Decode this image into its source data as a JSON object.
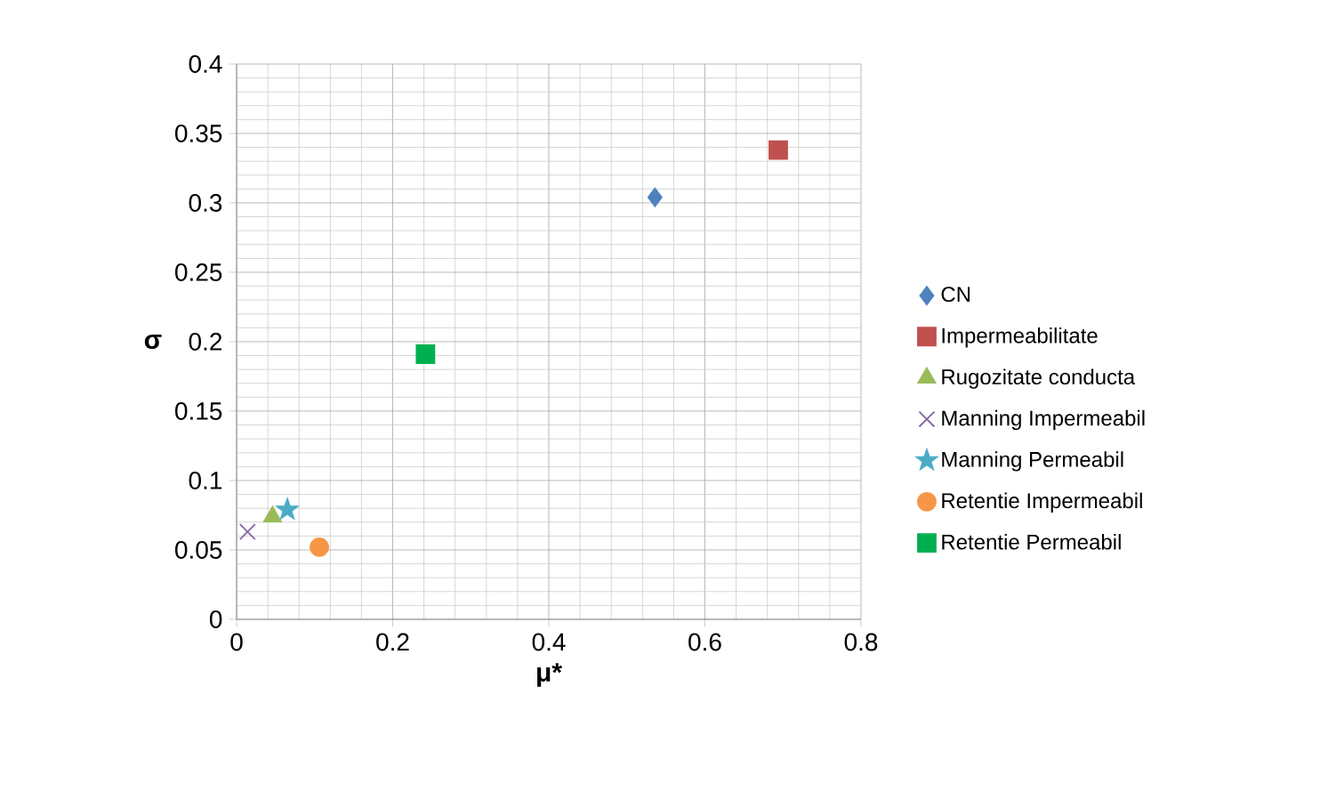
{
  "chart_data": {
    "type": "scatter",
    "xlabel": "μ*",
    "ylabel": "σ",
    "xlim": [
      0,
      0.8
    ],
    "xticks": [
      0,
      0.2,
      0.4,
      0.6,
      0.8
    ],
    "ylim": [
      0,
      0.4
    ],
    "yticks": [
      0,
      0.05,
      0.1,
      0.15,
      0.2,
      0.25,
      0.3,
      0.35,
      0.4
    ],
    "grid": true,
    "legend": "right",
    "series": [
      {
        "name": "CN",
        "color": "#4f81bd",
        "marker": "diamond",
        "x": [
          0.536
        ],
        "values": [
          0.304
        ]
      },
      {
        "name": "Impermeabilitate",
        "color": "#c0504d",
        "marker": "square",
        "x": [
          0.694
        ],
        "values": [
          0.338
        ]
      },
      {
        "name": "Rugozitate conducta",
        "color": "#9bbb59",
        "marker": "triangle",
        "x": [
          0.046
        ],
        "values": [
          0.074
        ]
      },
      {
        "name": "Manning Impermeabil",
        "color": "#8064a2",
        "marker": "cross",
        "x": [
          0.014
        ],
        "values": [
          0.063
        ]
      },
      {
        "name": "Manning Permeabil",
        "color": "#4bacc6",
        "marker": "star",
        "x": [
          0.065
        ],
        "values": [
          0.079
        ]
      },
      {
        "name": "Retentie Impermeabil",
        "color": "#f79646",
        "marker": "circle",
        "x": [
          0.106
        ],
        "values": [
          0.052
        ]
      },
      {
        "name": "Retentie Permeabil",
        "color": "#00b050",
        "marker": "square",
        "x": [
          0.242
        ],
        "values": [
          0.191
        ]
      }
    ]
  }
}
